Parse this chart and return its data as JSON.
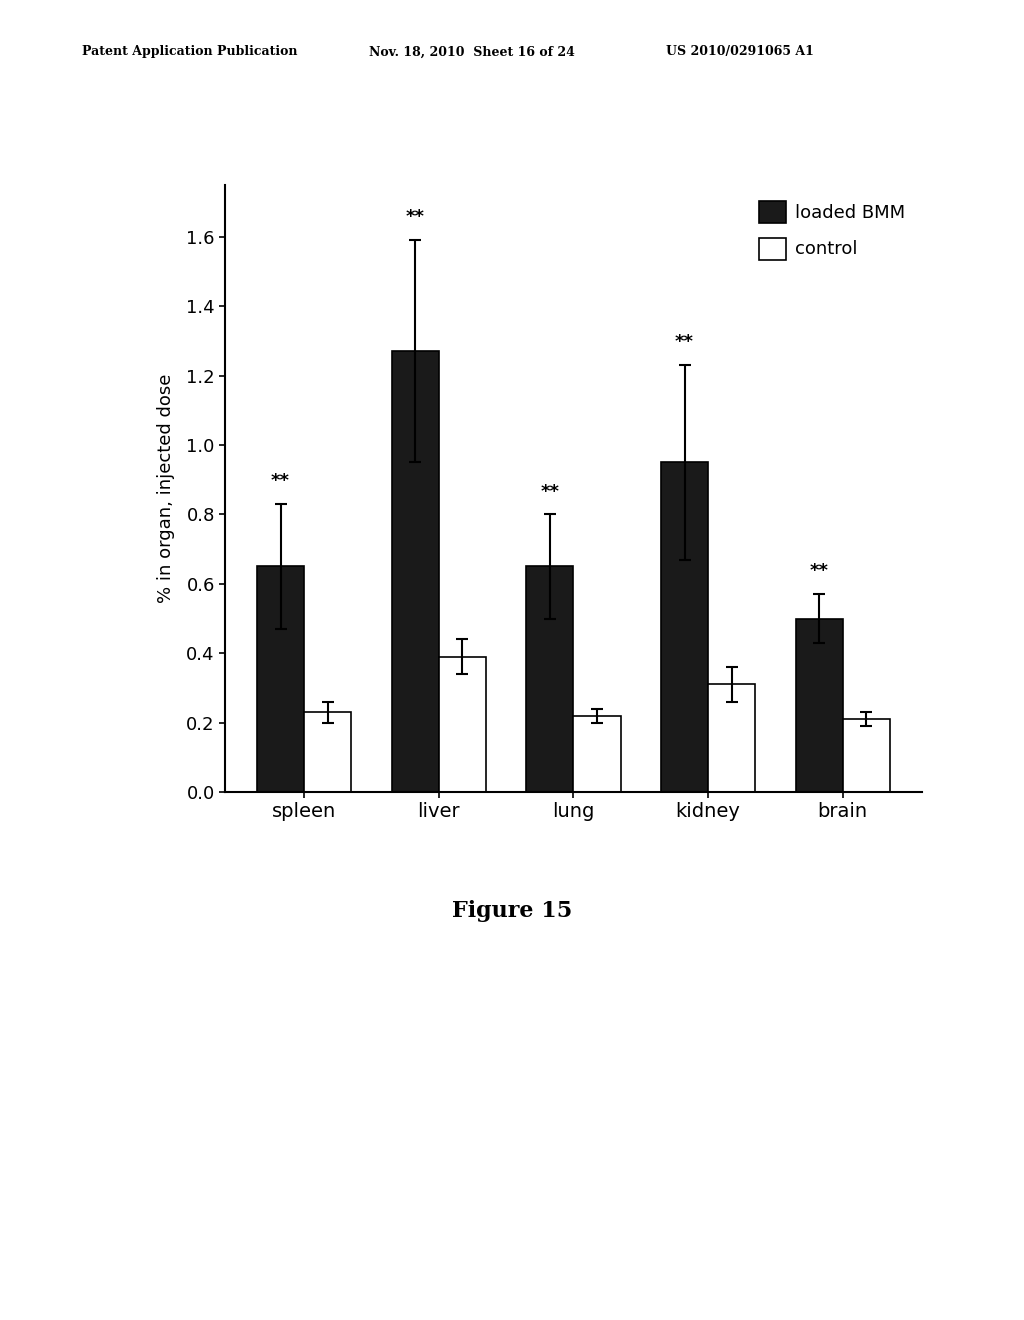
{
  "categories": [
    "spleen",
    "liver",
    "lung",
    "kidney",
    "brain"
  ],
  "loaded_bmm_values": [
    0.65,
    1.27,
    0.65,
    0.95,
    0.5
  ],
  "control_values": [
    0.23,
    0.39,
    0.22,
    0.31,
    0.21
  ],
  "loaded_bmm_errors": [
    0.18,
    0.32,
    0.15,
    0.28,
    0.07
  ],
  "control_errors": [
    0.03,
    0.05,
    0.02,
    0.05,
    0.02
  ],
  "loaded_bmm_color": "#1a1a1a",
  "control_color": "#ffffff",
  "ylabel": "% in organ, injected dose",
  "ylim": [
    0.0,
    1.75
  ],
  "yticks": [
    0.0,
    0.2,
    0.4,
    0.6,
    0.8,
    1.0,
    1.2,
    1.4,
    1.6
  ],
  "significance_label": "**",
  "bar_width": 0.35,
  "legend_labels": [
    "loaded BMM",
    "control"
  ],
  "figure_caption": "Figure 15",
  "header_left": "Patent Application Publication",
  "header_mid": "Nov. 18, 2010  Sheet 16 of 24",
  "header_right": "US 2010/0291065 A1"
}
